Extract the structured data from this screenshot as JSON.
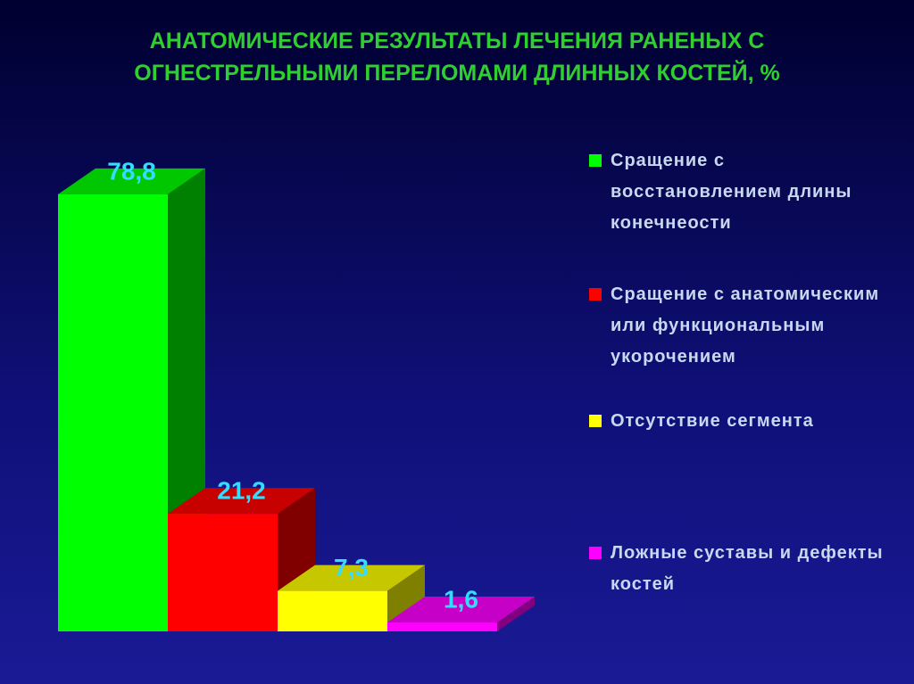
{
  "chart_data": {
    "type": "bar3d",
    "title": "АНАТОМИЧЕСКИЕ РЕЗУЛЬТАТЫ ЛЕЧЕНИЯ РАНЕНЫХ С ОГНЕСТРЕЛЬНЫМИ ПЕРЕЛОМАМИ ДЛИННЫХ КОСТЕЙ, %",
    "categories": [
      "Сращение с восстановлением длины конечнеости",
      "Сращение с анатомическим или функциональным укорочением",
      "Отсутствие сегмента",
      "Ложные суставы и дефекты костей"
    ],
    "values": [
      78.8,
      21.2,
      7.3,
      1.6
    ],
    "value_labels": [
      "78,8",
      "21,2",
      "7,3",
      "1,6"
    ],
    "colors": [
      "#00ff00",
      "#ff0000",
      "#ffff00",
      "#ff00ff"
    ],
    "legend": "right"
  }
}
